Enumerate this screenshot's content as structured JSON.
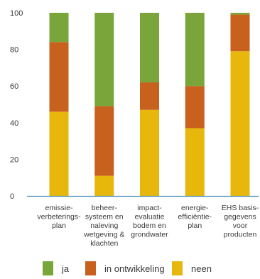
{
  "chart_data": {
    "type": "bar",
    "stacked": true,
    "categories": [
      [
        "emissie-",
        "verbeterings-",
        "plan"
      ],
      [
        "beheer-",
        "systeem en",
        "naleving",
        "wetgeving &",
        "klachten"
      ],
      [
        "impact-",
        "evaluatie",
        "bodem en",
        "grondwater"
      ],
      [
        "energie-",
        "efficiëntie-",
        "plan"
      ],
      [
        "EHS basis-",
        "gegevens",
        "voor",
        "producten"
      ]
    ],
    "series": [
      {
        "name": "neen",
        "color": "#e8b70c",
        "values": [
          46,
          11,
          47,
          37,
          79
        ]
      },
      {
        "name": "in ontwikkeling",
        "color": "#c8601e",
        "values": [
          38,
          38,
          15,
          23,
          20
        ]
      },
      {
        "name": "ja",
        "color": "#7aa53a",
        "values": [
          16,
          51,
          38,
          40,
          1
        ]
      }
    ],
    "yticks": [
      "0",
      "20",
      "40",
      "60",
      "80",
      "100"
    ],
    "ylim": [
      0,
      100
    ],
    "grid": false,
    "legend_placement": "bottom",
    "legend_order": [
      "ja",
      "in ontwikkeling",
      "neen"
    ],
    "axis_color": "#4a90b8",
    "title": "",
    "xlabel": "",
    "ylabel": ""
  }
}
